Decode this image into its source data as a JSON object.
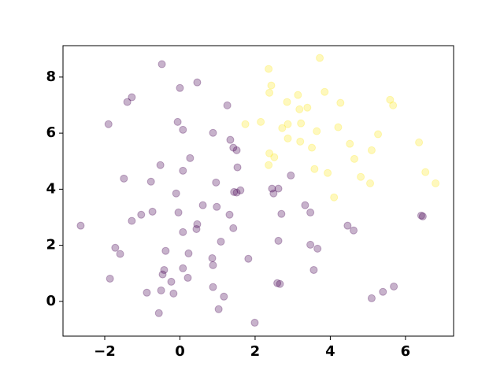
{
  "chart_data": {
    "type": "scatter",
    "xlim": [
      -3.11,
      7.28
    ],
    "ylim": [
      -1.24,
      9.12
    ],
    "xticks": [
      {
        "value": -2,
        "label": "−2"
      },
      0,
      2,
      4,
      6
    ],
    "yticks": [
      0,
      2,
      4,
      6,
      8
    ],
    "alpha": 0.3,
    "series": [
      {
        "color": "#440154",
        "x": [
          -2.64,
          -0.48,
          0.46,
          -1.28,
          -1.9,
          -1.4,
          0.0,
          1.26,
          -0.06,
          0.08,
          0.88,
          1.34,
          1.42,
          1.51,
          0.27,
          -0.52,
          0.08,
          -1.49,
          -0.77,
          1.53,
          1.61,
          1.51,
          1.44,
          0.96,
          -0.1,
          0.61,
          -0.73,
          -1.03,
          -1.28,
          -0.04,
          0.46,
          0.44,
          1.32,
          0.98,
          1.42,
          0.08,
          1.09,
          -1.72,
          -1.59,
          -0.38,
          0.23,
          0.86,
          1.82,
          0.88,
          -0.42,
          0.08,
          -0.46,
          -0.23,
          0.21,
          -1.86,
          0.88,
          -0.88,
          -0.5,
          -0.17,
          1.17,
          -0.56,
          1.03,
          1.99,
          2.45,
          2.62,
          2.49,
          2.95,
          3.33,
          2.7,
          3.47,
          2.62,
          3.47,
          3.66,
          3.56,
          2.59,
          2.66,
          4.46,
          4.62,
          6.42,
          6.46,
          5.69,
          5.4,
          5.1
        ],
        "values": [
          2.7,
          8.46,
          7.81,
          7.28,
          6.32,
          7.11,
          7.61,
          6.99,
          6.4,
          6.12,
          6.01,
          5.76,
          5.48,
          5.39,
          5.11,
          4.86,
          4.66,
          4.38,
          4.27,
          4.78,
          3.96,
          3.88,
          3.9,
          4.24,
          3.85,
          3.43,
          3.2,
          3.09,
          2.87,
          3.17,
          2.75,
          2.58,
          3.09,
          3.37,
          2.61,
          2.47,
          2.13,
          1.91,
          1.69,
          1.8,
          1.71,
          1.54,
          1.52,
          1.29,
          1.12,
          1.18,
          0.96,
          0.7,
          0.84,
          0.81,
          0.51,
          0.31,
          0.39,
          0.28,
          0.17,
          -0.42,
          -0.28,
          -0.76,
          4.02,
          4.02,
          3.85,
          4.49,
          3.43,
          3.12,
          3.17,
          2.16,
          2.02,
          1.88,
          1.12,
          0.65,
          0.62,
          2.7,
          2.53,
          3.06,
          3.03,
          0.53,
          0.34,
          0.11
        ]
      },
      {
        "color": "#fde725",
        "x": [
          2.36,
          3.72,
          2.43,
          2.38,
          3.85,
          3.14,
          2.85,
          3.39,
          3.18,
          4.27,
          2.87,
          3.22,
          1.74,
          2.15,
          3.64,
          4.21,
          2.72,
          2.87,
          3.2,
          5.27,
          4.52,
          3.51,
          2.38,
          2.51,
          4.64,
          5.1,
          2.36,
          3.58,
          3.93,
          4.81,
          5.06,
          4.1,
          5.59,
          5.67,
          6.36,
          6.53,
          6.8
        ],
        "values": [
          8.29,
          8.68,
          7.7,
          7.44,
          7.47,
          7.36,
          7.11,
          6.91,
          6.85,
          7.08,
          6.32,
          6.35,
          6.32,
          6.4,
          6.07,
          6.21,
          6.18,
          5.81,
          5.7,
          5.96,
          5.62,
          5.48,
          5.28,
          5.14,
          5.08,
          5.39,
          4.86,
          4.72,
          4.58,
          4.44,
          4.21,
          3.71,
          7.19,
          6.99,
          5.67,
          4.61,
          4.21
        ]
      }
    ]
  }
}
